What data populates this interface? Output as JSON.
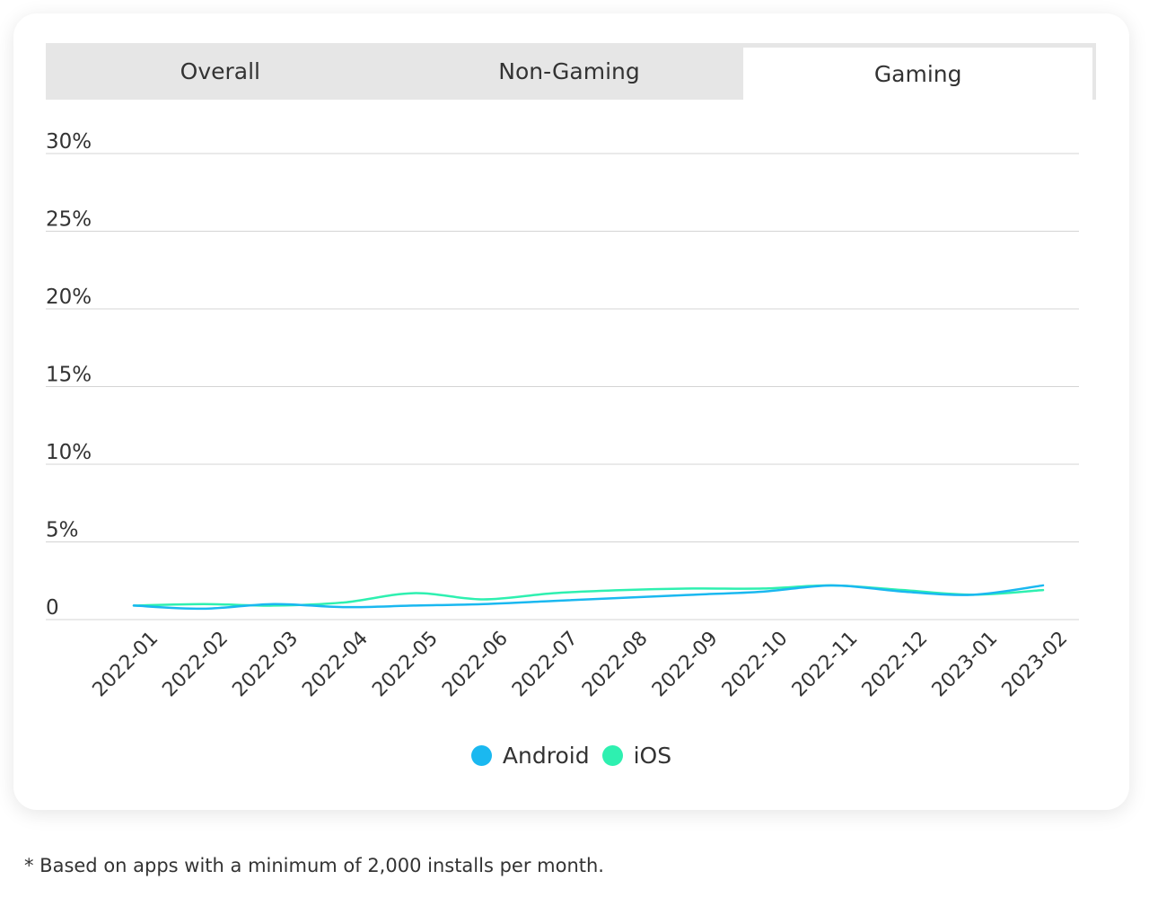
{
  "tabs": [
    {
      "label": "Overall",
      "active": false
    },
    {
      "label": "Non-Gaming",
      "active": false
    },
    {
      "label": "Gaming",
      "active": true
    }
  ],
  "colors": {
    "android": "#1ab8f0",
    "ios": "#2ef0b0",
    "grid": "#d4d4d4",
    "tab_bg": "#e6e6e6"
  },
  "footnote": "* Based on apps with a minimum of 2,000 installs per month.",
  "chart_data": {
    "type": "line",
    "categories": [
      "2022-01",
      "2022-02",
      "2022-03",
      "2022-04",
      "2022-05",
      "2022-06",
      "2022-07",
      "2022-08",
      "2022-09",
      "2022-10",
      "2022-11",
      "2022-12",
      "2023-01",
      "2023-02"
    ],
    "ytick_labels": [
      "0",
      "5%",
      "10%",
      "15%",
      "20%",
      "25%",
      "30%"
    ],
    "ylim": [
      0,
      30
    ],
    "grid": true,
    "legend_position": "bottom",
    "series": [
      {
        "name": "Android",
        "color": "#1ab8f0",
        "values": [
          0.9,
          0.7,
          1.0,
          0.8,
          0.9,
          1.0,
          1.2,
          1.4,
          1.6,
          1.8,
          2.2,
          1.8,
          1.6,
          2.2
        ]
      },
      {
        "name": "iOS",
        "color": "#2ef0b0",
        "values": [
          0.9,
          1.0,
          0.9,
          1.1,
          1.7,
          1.3,
          1.7,
          1.9,
          2.0,
          2.0,
          2.2,
          1.9,
          1.6,
          1.9
        ]
      }
    ]
  }
}
